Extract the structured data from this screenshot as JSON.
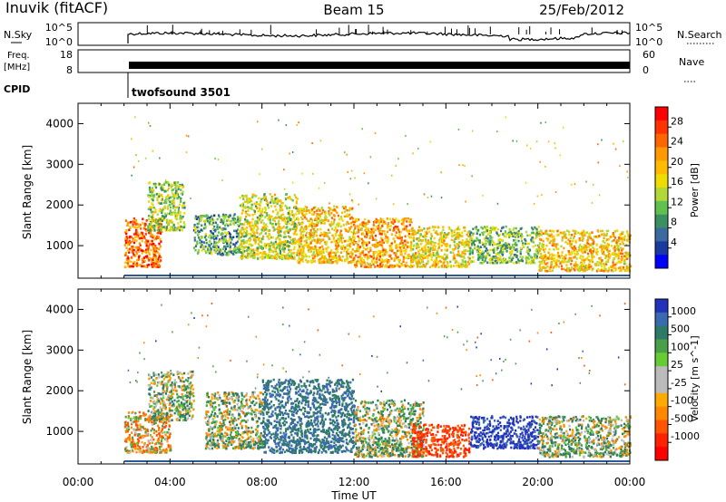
{
  "header": {
    "station": "Inuvik (fitACF)",
    "beam": "Beam 15",
    "date": "25/Feb/2012"
  },
  "panels": {
    "nsky": {
      "label": "N.Sky",
      "tick_top": "10^5",
      "tick_bottom": "10^0",
      "right_top": "10^5",
      "right_bottom": "10^0",
      "right_label": "N.Search"
    },
    "freq": {
      "label_top": "Freq.",
      "label_bottom": "[MHz]",
      "tick_top": "18",
      "tick_bottom": "8",
      "right_top": "60",
      "right_bottom": "0",
      "right_label": "Nave"
    },
    "cpid": {
      "label": "CPID",
      "value": "twofsound 3501"
    }
  },
  "colorbars": {
    "power": {
      "label": "Power [dB]",
      "ticks": [
        "28",
        "24",
        "20",
        "16",
        "12",
        "8",
        "4"
      ],
      "colors": [
        "#ff0000",
        "#ff3300",
        "#ff6600",
        "#ff9900",
        "#ffbb00",
        "#f0dd00",
        "#b0d838",
        "#60c050",
        "#3a9060",
        "#3a6aa0",
        "#1a3aa0",
        "#0000ff"
      ]
    },
    "velocity": {
      "label": "Velocity [m s^-1]",
      "ticks": [
        "1000",
        "500",
        "100",
        "25",
        "-25",
        "-100",
        "-500",
        "-1000"
      ],
      "colors": [
        "#2233bb",
        "#3a6ab0",
        "#2e7a68",
        "#4aa048",
        "#66cc33",
        "#bbbbbb",
        "#bbbbbb",
        "#ffaa00",
        "#ff8800",
        "#ff5500",
        "#ff2200",
        "#ff0000"
      ]
    }
  },
  "axes": {
    "xlabel": "Time UT",
    "xticks": [
      "00:00",
      "04:00",
      "08:00",
      "12:00",
      "16:00",
      "20:00",
      "00:00"
    ],
    "ylabel": "Slant Range [km]",
    "yticks": [
      "1000",
      "2000",
      "3000",
      "4000"
    ]
  },
  "chart_data": [
    {
      "type": "heatmap",
      "title": "Power [dB]",
      "xlabel": "Time UT",
      "ylabel": "Slant Range [km]",
      "x_range_hours": [
        0,
        24
      ],
      "ylim": [
        200,
        4500
      ],
      "color_range": [
        0,
        32
      ],
      "clusters": [
        {
          "t": [
            2.0,
            3.6
          ],
          "r": [
            500,
            1700
          ],
          "power": 26
        },
        {
          "t": [
            3.0,
            4.6
          ],
          "r": [
            1400,
            2600
          ],
          "power": 14
        },
        {
          "t": [
            5.0,
            7.0
          ],
          "r": [
            800,
            1800
          ],
          "power": 10
        },
        {
          "t": [
            7.0,
            9.5
          ],
          "r": [
            700,
            2300
          ],
          "power": 16
        },
        {
          "t": [
            9.5,
            12.0
          ],
          "r": [
            600,
            2000
          ],
          "power": 20
        },
        {
          "t": [
            12.0,
            14.5
          ],
          "r": [
            500,
            1700
          ],
          "power": 22
        },
        {
          "t": [
            14.5,
            17.0
          ],
          "r": [
            500,
            1500
          ],
          "power": 18
        },
        {
          "t": [
            17.0,
            20.0
          ],
          "r": [
            600,
            1500
          ],
          "power": 12
        },
        {
          "t": [
            20.0,
            24.0
          ],
          "r": [
            400,
            1400
          ],
          "power": 20
        }
      ]
    },
    {
      "type": "heatmap",
      "title": "Velocity [m s^-1]",
      "xlabel": "Time UT",
      "ylabel": "Slant Range [km]",
      "x_range_hours": [
        0,
        24
      ],
      "ylim": [
        200,
        4500
      ],
      "clusters": [
        {
          "t": [
            2.0,
            4.0
          ],
          "r": [
            500,
            1500
          ],
          "velocity": -100
        },
        {
          "t": [
            3.0,
            5.0
          ],
          "r": [
            1300,
            2500
          ],
          "velocity": 100
        },
        {
          "t": [
            5.5,
            8.0
          ],
          "r": [
            600,
            2000
          ],
          "velocity": 100
        },
        {
          "t": [
            8.0,
            12.0
          ],
          "r": [
            500,
            2300
          ],
          "velocity": 500
        },
        {
          "t": [
            12.0,
            15.0
          ],
          "r": [
            400,
            1800
          ],
          "velocity": 100
        },
        {
          "t": [
            14.5,
            17.0
          ],
          "r": [
            400,
            1200
          ],
          "velocity": -500
        },
        {
          "t": [
            17.0,
            20.0
          ],
          "r": [
            600,
            1400
          ],
          "velocity": 1000
        },
        {
          "t": [
            20.0,
            24.0
          ],
          "r": [
            400,
            1400
          ],
          "velocity": 100
        }
      ]
    }
  ]
}
